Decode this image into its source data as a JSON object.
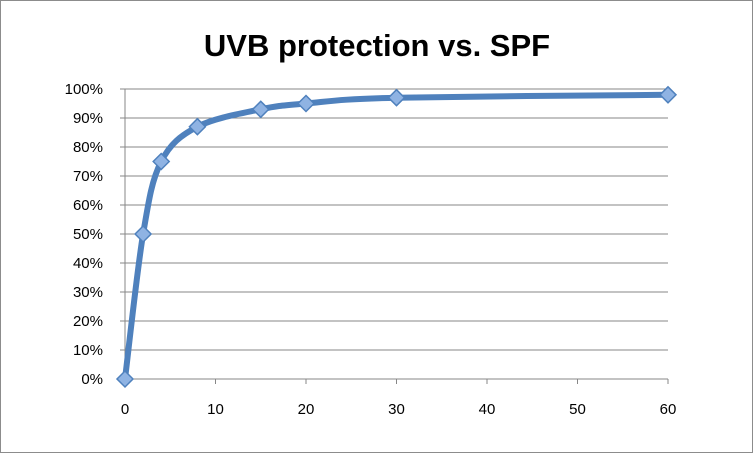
{
  "chart_data": {
    "type": "line",
    "title": "UVB protection vs. SPF",
    "xlabel": "",
    "ylabel": "",
    "x": [
      0,
      2,
      4,
      8,
      15,
      20,
      30,
      60
    ],
    "series": [
      {
        "values": [
          0,
          50,
          75,
          87,
          93,
          95,
          97,
          98
        ]
      }
    ],
    "xlim": [
      0,
      60
    ],
    "ylim": [
      0,
      100
    ],
    "xticks": [
      0,
      10,
      20,
      30,
      40,
      50,
      60
    ],
    "yticks": [
      0,
      10,
      20,
      30,
      40,
      50,
      60,
      70,
      80,
      90,
      100
    ],
    "xtick_labels": [
      "0",
      "10",
      "20",
      "30",
      "40",
      "50",
      "60"
    ],
    "ytick_labels": [
      "0%",
      "10%",
      "20%",
      "30%",
      "40%",
      "50%",
      "60%",
      "70%",
      "80%",
      "90%",
      "100%"
    ],
    "grid": "horizontal",
    "legend": "none",
    "smooth": true,
    "marker": "diamond",
    "colors": {
      "line": "#4f81bd",
      "marker_fill": "#8fb3e3",
      "marker_edge": "#4f81bd",
      "grid": "#878787",
      "axis": "#878787"
    }
  }
}
